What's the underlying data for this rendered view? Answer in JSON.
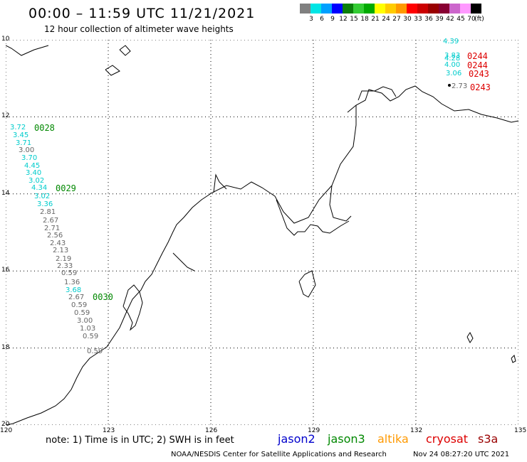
{
  "header": {
    "title": "00:00 – 11:59 UTC 11/21/2021",
    "subtitle": "12 hour collection of altimeter wave heights"
  },
  "color_scale": {
    "colors": [
      "#808080",
      "#00e5e5",
      "#00a0ff",
      "#0000ff",
      "#0a7f0a",
      "#33cc33",
      "#00aa00",
      "#ffff00",
      "#ffcc00",
      "#ff9900",
      "#ff0000",
      "#cc0000",
      "#990000",
      "#880033",
      "#cc66cc",
      "#ff99ff",
      "#000000"
    ],
    "labels": [
      "3",
      "6",
      "9",
      "12",
      "15",
      "18",
      "21",
      "24",
      "27",
      "30",
      "33",
      "36",
      "39",
      "42",
      "45",
      "70",
      "(ft)"
    ]
  },
  "axes": {
    "lat_labels": [
      "10",
      "12",
      "14",
      "16",
      "18",
      "20"
    ],
    "lon_labels": [
      "120",
      "123",
      "126",
      "129",
      "132",
      "135"
    ]
  },
  "measurements_left": [
    {
      "v": "3.72",
      "c": "#00cccc"
    },
    {
      "v": "3.45",
      "c": "#00cccc"
    },
    {
      "v": "3.71",
      "c": "#00cccc"
    },
    {
      "v": "3.00",
      "c": "#666666"
    },
    {
      "v": "3.70",
      "c": "#00cccc"
    },
    {
      "v": "4.45",
      "c": "#00cccc"
    },
    {
      "v": "3.40",
      "c": "#00cccc"
    },
    {
      "v": "3.02",
      "c": "#00cccc"
    },
    {
      "v": "4.34",
      "c": "#00cccc"
    },
    {
      "v": "3.02",
      "c": "#00cccc"
    },
    {
      "v": "3.36",
      "c": "#00cccc"
    },
    {
      "v": "2.81",
      "c": "#666666"
    },
    {
      "v": "2.67",
      "c": "#666666"
    },
    {
      "v": "2.71",
      "c": "#666666"
    },
    {
      "v": "2.56",
      "c": "#666666"
    },
    {
      "v": "2.43",
      "c": "#666666"
    },
    {
      "v": "2.13",
      "c": "#666666"
    },
    {
      "v": "2.19",
      "c": "#666666"
    },
    {
      "v": "2.33",
      "c": "#666666"
    },
    {
      "v": "0.59",
      "c": "#666666"
    },
    {
      "v": "1.36",
      "c": "#666666"
    },
    {
      "v": "3.68",
      "c": "#00cccc"
    },
    {
      "v": "2.67",
      "c": "#666666"
    },
    {
      "v": "0.59",
      "c": "#666666"
    },
    {
      "v": "0.59",
      "c": "#666666"
    },
    {
      "v": "3.00",
      "c": "#666666"
    },
    {
      "v": "1.03",
      "c": "#666666"
    },
    {
      "v": "0.59",
      "c": "#666666"
    },
    {
      "v": "0.59",
      "c": "#666666"
    }
  ],
  "measurements_right": [
    {
      "v": "4.39",
      "c": "#00cccc"
    },
    {
      "v": "3.83",
      "c": "#00cccc"
    },
    {
      "v": "4.28",
      "c": "#00cccc"
    },
    {
      "v": "4.00",
      "c": "#00cccc"
    },
    {
      "v": "3.06",
      "c": "#00cccc"
    },
    {
      "v": "2.73",
      "c": "#666666"
    }
  ],
  "pass_times": [
    {
      "t": "0028",
      "c": "#008800"
    },
    {
      "t": "0029",
      "c": "#008800"
    },
    {
      "t": "0030",
      "c": "#008800"
    },
    {
      "t": "0244",
      "c": "#dd0000"
    },
    {
      "t": "0244",
      "c": "#dd0000"
    },
    {
      "t": "0243",
      "c": "#dd0000"
    },
    {
      "t": "0243",
      "c": "#dd0000"
    }
  ],
  "note": "note:  1) Time is in UTC;  2) SWH is in feet",
  "legend": [
    {
      "name": "jason2",
      "color": "#0000cc"
    },
    {
      "name": "jason3",
      "color": "#008800"
    },
    {
      "name": "altika",
      "color": "#ff9900"
    },
    {
      "name": "cryosat",
      "color": "#dd0000"
    },
    {
      "name": "s3a",
      "color": "#990000"
    }
  ],
  "footer": {
    "credit": "NOAA/NESDIS Center for Satellite Applications and Research",
    "date": "Nov 24 08:27:20 UTC 2021"
  }
}
